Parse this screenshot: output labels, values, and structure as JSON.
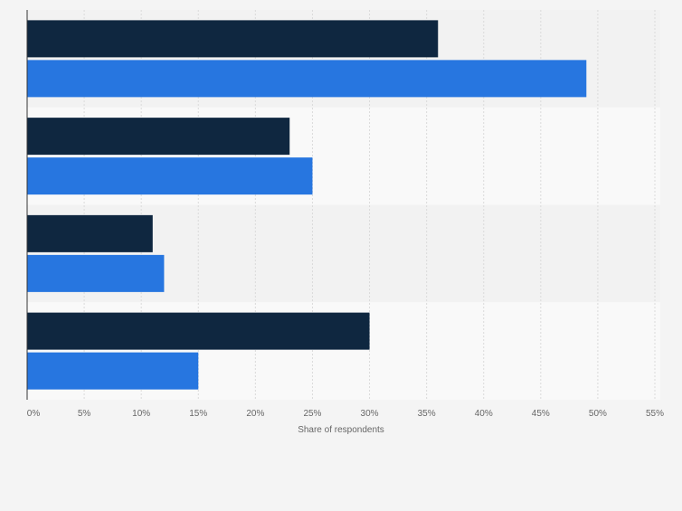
{
  "chart_data": {
    "type": "bar",
    "orientation": "horizontal",
    "categories": [
      "",
      "",
      "",
      ""
    ],
    "series": [
      {
        "values": [
          36,
          23,
          11,
          30
        ],
        "color": "#0f2740"
      },
      {
        "values": [
          49,
          25,
          12,
          15
        ],
        "color": "#2776e0"
      }
    ],
    "xlabel": "Share of respondents",
    "xlim": [
      0,
      55
    ],
    "x_tick_values": [
      0,
      5,
      10,
      15,
      20,
      25,
      30,
      35,
      40,
      45,
      50,
      55
    ],
    "x_tick_labels": [
      "0%",
      "5%",
      "10%",
      "15%",
      "20%",
      "25%",
      "30%",
      "35%",
      "40%",
      "45%",
      "50%",
      "55%"
    ],
    "grid": true,
    "band_colors": [
      "#f2f2f2",
      "#f9f9f9"
    ]
  }
}
